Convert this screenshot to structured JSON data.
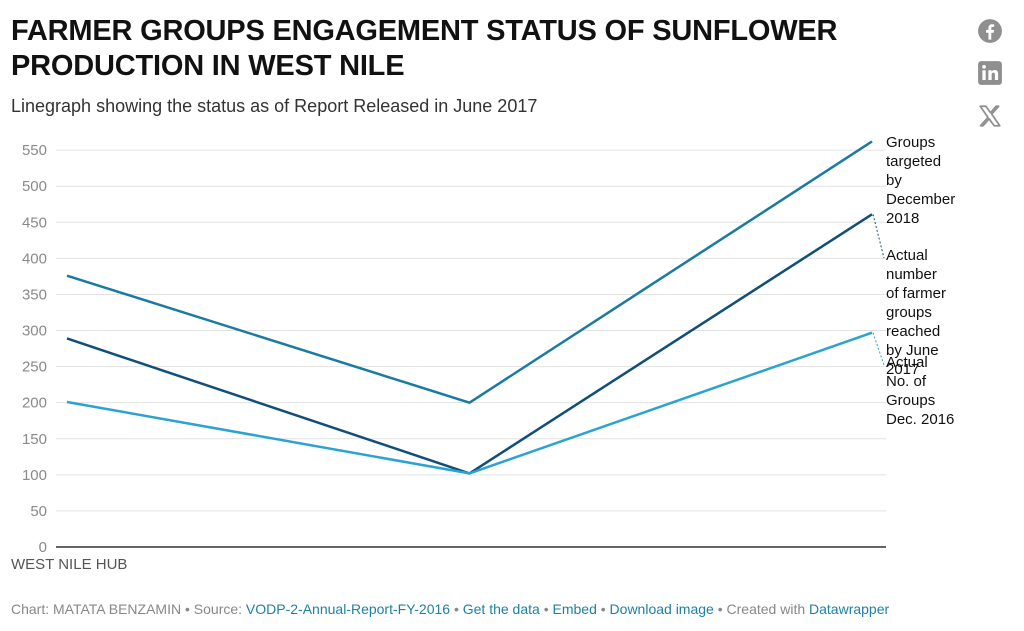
{
  "header": {
    "title": "FARMER GROUPS ENGAGEMENT STATUS OF SUNFLOWER PRODUCTION IN WEST NILE",
    "subtitle": "Linegraph showing the status as of Report Released in June 2017"
  },
  "social": {
    "facebook_icon": "facebook-icon",
    "linkedin_icon": "linkedin-icon",
    "x_icon": "x-icon"
  },
  "chart_data": {
    "type": "line",
    "title": "FARMER GROUPS ENGAGEMENT STATUS OF SUNFLOWER PRODUCTION IN WEST NILE",
    "subtitle": "Linegraph showing the status as of Report Released in June 2017",
    "x_label": "WEST NILE HUB",
    "ylim": [
      0,
      560
    ],
    "yticks": [
      0,
      50,
      100,
      150,
      200,
      250,
      300,
      350,
      400,
      450,
      500,
      550
    ],
    "grid": true,
    "legend": "direct labels at line ends (right)",
    "series": [
      {
        "name": "Groups targeted by December 2018",
        "label_lines": [
          "Groups",
          "targeted",
          "by",
          "December",
          "2018"
        ],
        "color": "#1a7aa0",
        "values": [
          376,
          200,
          562
        ]
      },
      {
        "name": "Actual number of farmer groups reached by June 2017",
        "label_lines": [
          "Actual",
          "number",
          "of farmer",
          "groups",
          "reached",
          "by June",
          "2017"
        ],
        "color": "#0f4f78",
        "values": [
          289,
          102,
          461
        ]
      },
      {
        "name": "Actual No. of Groups Dec. 2016",
        "label_lines": [
          "Actual",
          "No. of",
          "Groups",
          "Dec. 2016"
        ],
        "color": "#2ba3d1",
        "values": [
          201,
          102,
          297
        ]
      }
    ]
  },
  "footer": {
    "chart_credit": "Chart: MATATA BENZAMIN",
    "source_prefix": "Source:",
    "source_link": "VODP-2-Annual-Report-FY-2016",
    "get_data": "Get the data",
    "embed": "Embed",
    "download": "Download image",
    "created_with": "Created with",
    "datawrapper": "Datawrapper",
    "separator": "•"
  }
}
